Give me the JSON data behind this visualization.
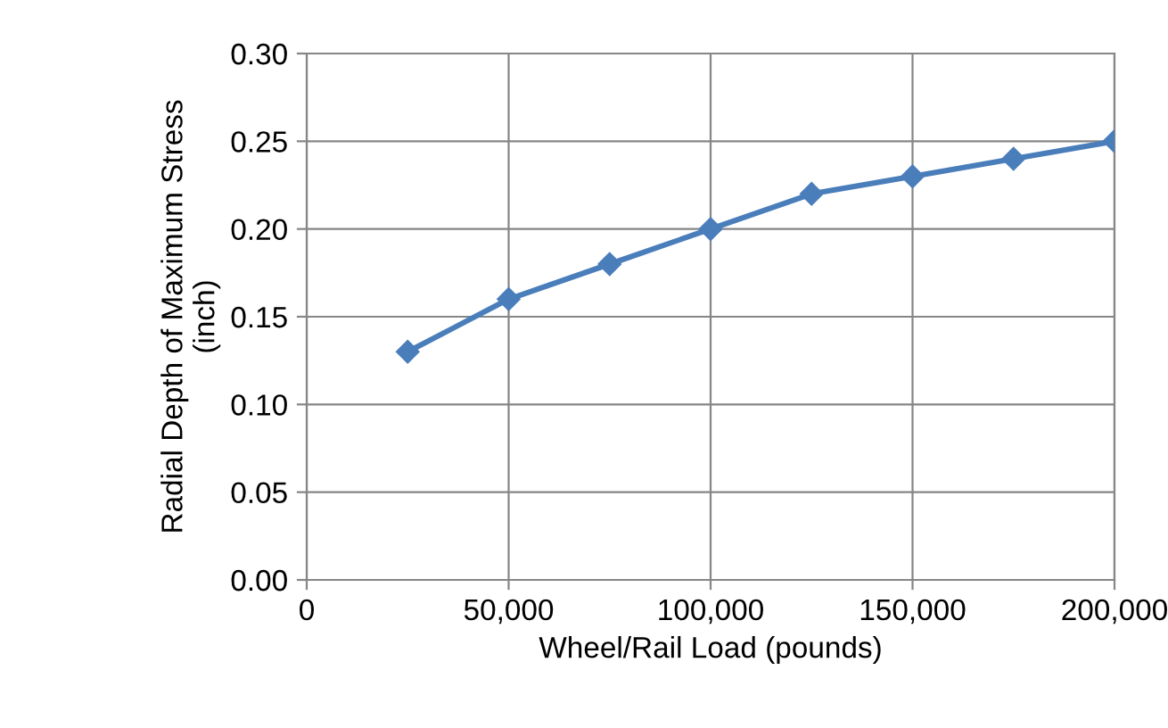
{
  "chart_data": {
    "type": "line",
    "xlabel": "Wheel/Rail Load (pounds)",
    "ylabel": "Radial Depth of Maximum Stress\n(inch)",
    "x": [
      25000,
      50000,
      75000,
      100000,
      125000,
      150000,
      175000,
      200000
    ],
    "series": [
      {
        "color": "#4a7ebb",
        "values": [
          0.13,
          0.16,
          0.18,
          0.2,
          0.22,
          0.23,
          0.24,
          0.25
        ]
      }
    ],
    "xlim": [
      0,
      200000
    ],
    "xticks": [
      {
        "value": 0,
        "label": "0"
      },
      {
        "value": 50000,
        "label": "50,000"
      },
      {
        "value": 100000,
        "label": "100,000"
      },
      {
        "value": 150000,
        "label": "150,000"
      },
      {
        "value": 200000,
        "label": "200,000"
      }
    ],
    "ylim": [
      0,
      0.3
    ],
    "yticks": [
      {
        "value": 0,
        "label": "0.00"
      },
      {
        "value": 0.05,
        "label": "0.05"
      },
      {
        "value": 0.1,
        "label": "0.10"
      },
      {
        "value": 0.15,
        "label": "0.15"
      },
      {
        "value": 0.2,
        "label": "0.20"
      },
      {
        "value": 0.25,
        "label": "0.25"
      },
      {
        "value": 0.3,
        "label": "0.30"
      }
    ],
    "grid": true,
    "marker": "diamond",
    "line_style": "solid",
    "legend": false
  }
}
